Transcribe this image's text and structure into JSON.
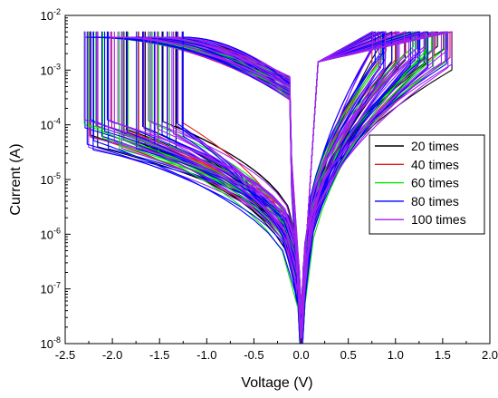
{
  "chart_data": {
    "type": "line",
    "title": "",
    "xlabel": "Voltage (V)",
    "ylabel": "Current (A)",
    "xlim": [
      -2.5,
      2.0
    ],
    "ylim": [
      1e-08,
      0.01
    ],
    "y_scale": "log",
    "grid": false,
    "legend_position": "right",
    "x_ticks": [
      -2.5,
      -2.0,
      -1.5,
      -1.0,
      -0.5,
      0.0,
      0.5,
      1.0,
      1.5,
      2.0
    ],
    "x_tick_labels": [
      "-2.5",
      "-2.0",
      "-1.5",
      "-1.0",
      "-0.5",
      "0.0",
      "0.5",
      "1.0",
      "1.5",
      "2.0"
    ],
    "y_ticks": [
      {
        "value": 1e-08,
        "base": "10",
        "exp": "-8"
      },
      {
        "value": 1e-07,
        "base": "10",
        "exp": "-7"
      },
      {
        "value": 1e-06,
        "base": "10",
        "exp": "-6"
      },
      {
        "value": 1e-05,
        "base": "10",
        "exp": "-5"
      },
      {
        "value": 0.0001,
        "base": "10",
        "exp": "-4"
      },
      {
        "value": 0.001,
        "base": "10",
        "exp": "-3"
      },
      {
        "value": 0.01,
        "base": "10",
        "exp": "-2"
      }
    ],
    "series": [
      {
        "name": "20 times",
        "color": "#000000"
      },
      {
        "name": "40 times",
        "color": "#e31a1c"
      },
      {
        "name": "60 times",
        "color": "#00e600"
      },
      {
        "name": "80 times",
        "color": "#0000ff"
      },
      {
        "name": "100 times",
        "color": "#a020f0"
      }
    ]
  }
}
